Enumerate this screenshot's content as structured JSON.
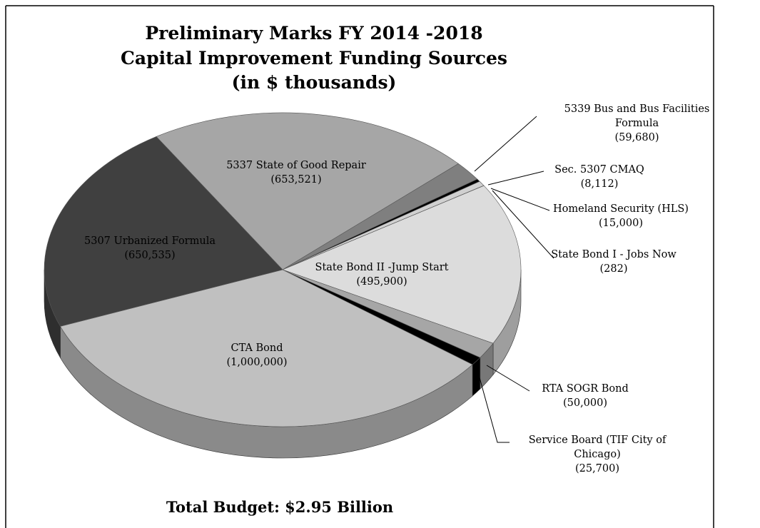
{
  "chart_data": {
    "type": "pie3d",
    "title": [
      "Preliminary Marks FY 2014 -2018",
      "Capital Improvement Funding Sources",
      "(in $ thousands)"
    ],
    "categories": [
      "5337 State of Good Repair",
      "5339 Bus and Bus Facilities Formula",
      "Sec. 5307 CMAQ",
      "Homeland Security (HLS)",
      "State Bond I - Jobs Now",
      "State Bond II -Jump Start",
      "RTA SOGR Bond",
      "Service Board (TIF City of Chicago)",
      "CTA Bond",
      "5307 Urbanized Formula"
    ],
    "values": [
      653521,
      59680,
      8112,
      15000,
      282,
      495900,
      50000,
      25700,
      1000000,
      650535
    ],
    "value_labels": [
      "(653,521)",
      "(59,680)",
      "(8,112)",
      "(15,000)",
      "(282)",
      "(495,900)",
      "(50,000)",
      "(25,700)",
      "(1,000,000)",
      "(650,535)"
    ],
    "colors": [
      "#a6a6a6",
      "#7f7f7f",
      "#000000",
      "#d0d0d0",
      "#bfbfbf",
      "#dcdcdc",
      "#a6a6a6",
      "#000000",
      "#c0c0c0",
      "#404040"
    ],
    "annotation": "Total Budget: $2.95 Billion"
  }
}
